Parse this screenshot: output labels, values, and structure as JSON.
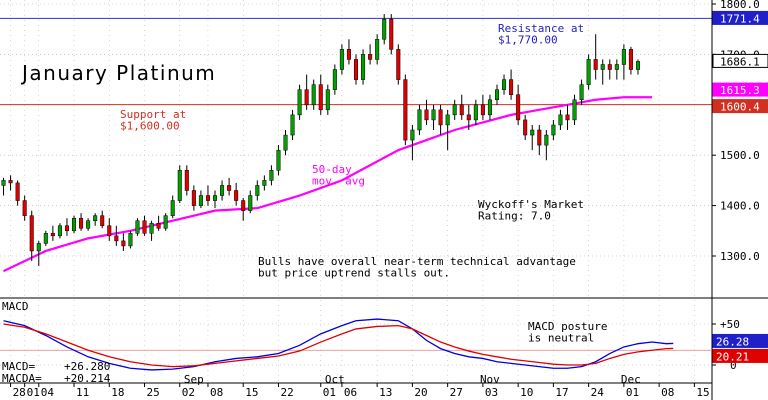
{
  "chart_data": [
    {
      "type": "candlestick",
      "title": "January Platinum",
      "ylim": [
        1200,
        1800
      ],
      "y_ticks": [
        1300,
        1400,
        1500,
        1600,
        1700,
        1800
      ],
      "y_tick_labels": [
        "1300.0",
        "1400.0",
        "1500.0",
        "1600.0",
        "1700.0",
        "1800.0"
      ],
      "x_tick_labels": [
        {
          "label": "28",
          "i": 1
        },
        {
          "label": "01",
          "i": 3
        },
        {
          "label": "04",
          "i": 5
        },
        {
          "label": "11",
          "i": 10
        },
        {
          "label": "18",
          "i": 15
        },
        {
          "label": "25",
          "i": 20
        },
        {
          "label": "02",
          "i": 25
        },
        {
          "label": "08",
          "i": 29
        },
        {
          "label": "15",
          "i": 34
        },
        {
          "label": "22",
          "i": 39
        },
        {
          "label": "01",
          "i": 45
        },
        {
          "label": "06",
          "i": 48
        },
        {
          "label": "13",
          "i": 53
        },
        {
          "label": "20",
          "i": 58
        },
        {
          "label": "27",
          "i": 63
        },
        {
          "label": "03",
          "i": 68
        },
        {
          "label": "10",
          "i": 73
        },
        {
          "label": "17",
          "i": 78
        },
        {
          "label": "24",
          "i": 83
        },
        {
          "label": "01",
          "i": 88
        },
        {
          "label": "08",
          "i": 93
        },
        {
          "label": "15",
          "i": 98
        }
      ],
      "month_labels": [
        {
          "label": "Sep",
          "i": 27
        },
        {
          "label": "Oct",
          "i": 47
        },
        {
          "label": "Nov",
          "i": 69
        },
        {
          "label": "Dec",
          "i": 89
        }
      ],
      "n_slots": 101,
      "candles": [
        [
          1440,
          1455,
          1420,
          1450
        ],
        [
          1450,
          1460,
          1430,
          1445
        ],
        [
          1445,
          1450,
          1400,
          1410
        ],
        [
          1410,
          1420,
          1370,
          1380
        ],
        [
          1380,
          1390,
          1290,
          1310
        ],
        [
          1310,
          1330,
          1280,
          1325
        ],
        [
          1325,
          1350,
          1320,
          1345
        ],
        [
          1345,
          1360,
          1330,
          1340
        ],
        [
          1340,
          1365,
          1335,
          1360
        ],
        [
          1360,
          1375,
          1340,
          1350
        ],
        [
          1350,
          1380,
          1345,
          1375
        ],
        [
          1375,
          1385,
          1350,
          1355
        ],
        [
          1355,
          1375,
          1350,
          1370
        ],
        [
          1370,
          1385,
          1360,
          1380
        ],
        [
          1380,
          1390,
          1355,
          1360
        ],
        [
          1360,
          1375,
          1330,
          1340
        ],
        [
          1340,
          1360,
          1320,
          1330
        ],
        [
          1330,
          1345,
          1310,
          1320
        ],
        [
          1320,
          1350,
          1315,
          1345
        ],
        [
          1345,
          1375,
          1340,
          1370
        ],
        [
          1370,
          1380,
          1340,
          1345
        ],
        [
          1345,
          1370,
          1330,
          1365
        ],
        [
          1365,
          1380,
          1350,
          1355
        ],
        [
          1355,
          1385,
          1350,
          1380
        ],
        [
          1380,
          1420,
          1375,
          1410
        ],
        [
          1410,
          1480,
          1405,
          1470
        ],
        [
          1470,
          1480,
          1420,
          1430
        ],
        [
          1430,
          1440,
          1390,
          1400
        ],
        [
          1400,
          1430,
          1395,
          1420
        ],
        [
          1420,
          1440,
          1400,
          1410
        ],
        [
          1410,
          1430,
          1395,
          1420
        ],
        [
          1420,
          1450,
          1410,
          1440
        ],
        [
          1440,
          1455,
          1420,
          1430
        ],
        [
          1430,
          1445,
          1400,
          1410
        ],
        [
          1410,
          1415,
          1370,
          1390
        ],
        [
          1390,
          1430,
          1385,
          1420
        ],
        [
          1420,
          1450,
          1410,
          1440
        ],
        [
          1440,
          1460,
          1430,
          1450
        ],
        [
          1450,
          1480,
          1440,
          1470
        ],
        [
          1470,
          1520,
          1460,
          1510
        ],
        [
          1510,
          1550,
          1500,
          1540
        ],
        [
          1540,
          1590,
          1530,
          1580
        ],
        [
          1580,
          1640,
          1570,
          1630
        ],
        [
          1630,
          1660,
          1590,
          1600
        ],
        [
          1600,
          1650,
          1590,
          1640
        ],
        [
          1640,
          1660,
          1580,
          1590
        ],
        [
          1590,
          1640,
          1580,
          1630
        ],
        [
          1630,
          1680,
          1620,
          1670
        ],
        [
          1670,
          1720,
          1660,
          1710
        ],
        [
          1710,
          1730,
          1680,
          1690
        ],
        [
          1690,
          1700,
          1640,
          1650
        ],
        [
          1650,
          1710,
          1640,
          1700
        ],
        [
          1700,
          1720,
          1680,
          1690
        ],
        [
          1690,
          1740,
          1680,
          1730
        ],
        [
          1730,
          1780,
          1720,
          1770
        ],
        [
          1770,
          1780,
          1700,
          1710
        ],
        [
          1710,
          1720,
          1640,
          1650
        ],
        [
          1650,
          1660,
          1520,
          1530
        ],
        [
          1530,
          1560,
          1490,
          1550
        ],
        [
          1550,
          1600,
          1540,
          1590
        ],
        [
          1590,
          1610,
          1560,
          1570
        ],
        [
          1570,
          1600,
          1550,
          1590
        ],
        [
          1590,
          1600,
          1540,
          1560
        ],
        [
          1560,
          1590,
          1510,
          1580
        ],
        [
          1580,
          1610,
          1570,
          1600
        ],
        [
          1600,
          1620,
          1570,
          1580
        ],
        [
          1580,
          1600,
          1550,
          1570
        ],
        [
          1570,
          1610,
          1560,
          1600
        ],
        [
          1600,
          1620,
          1570,
          1580
        ],
        [
          1580,
          1620,
          1570,
          1610
        ],
        [
          1610,
          1640,
          1600,
          1630
        ],
        [
          1630,
          1660,
          1620,
          1650
        ],
        [
          1650,
          1670,
          1610,
          1620
        ],
        [
          1620,
          1640,
          1560,
          1570
        ],
        [
          1570,
          1580,
          1530,
          1540
        ],
        [
          1540,
          1560,
          1510,
          1550
        ],
        [
          1550,
          1560,
          1500,
          1520
        ],
        [
          1520,
          1550,
          1490,
          1540
        ],
        [
          1540,
          1570,
          1530,
          1560
        ],
        [
          1560,
          1590,
          1550,
          1580
        ],
        [
          1580,
          1600,
          1550,
          1570
        ],
        [
          1570,
          1620,
          1560,
          1610
        ],
        [
          1610,
          1650,
          1600,
          1640
        ],
        [
          1640,
          1700,
          1630,
          1690
        ],
        [
          1690,
          1740,
          1650,
          1670
        ],
        [
          1670,
          1690,
          1640,
          1680
        ],
        [
          1680,
          1690,
          1650,
          1670
        ],
        [
          1670,
          1690,
          1650,
          1680
        ],
        [
          1680,
          1720,
          1650,
          1710
        ],
        [
          1710,
          1715,
          1660,
          1670
        ],
        [
          1670,
          1690,
          1660,
          1686
        ]
      ],
      "candle_x_offset": 0,
      "ma50": {
        "label": "50-day\nmov. avg",
        "values_at": [
          [
            0,
            1270
          ],
          [
            6,
            1310
          ],
          [
            12,
            1335
          ],
          [
            18,
            1350
          ],
          [
            24,
            1370
          ],
          [
            30,
            1390
          ],
          [
            36,
            1395
          ],
          [
            42,
            1420
          ],
          [
            48,
            1450
          ],
          [
            52,
            1480
          ],
          [
            56,
            1510
          ],
          [
            60,
            1530
          ],
          [
            64,
            1550
          ],
          [
            68,
            1565
          ],
          [
            72,
            1580
          ],
          [
            76,
            1590
          ],
          [
            80,
            1600
          ],
          [
            84,
            1610
          ],
          [
            88,
            1615
          ],
          [
            92,
            1615
          ],
          [
            91,
            1615.3
          ]
        ]
      },
      "reference_lines": [
        {
          "name": "resistance",
          "value": 1771.4,
          "label": "1771.4",
          "color": "#3030c8"
        },
        {
          "name": "support",
          "value": 1600.4,
          "label": "1600.4",
          "color": "#d03020"
        }
      ],
      "price_badges": [
        {
          "name": "last-price",
          "value": 1686.1,
          "label": "1686.1",
          "bg": "#ffffff",
          "fg": "#000000",
          "border": "#000000"
        },
        {
          "name": "ma-value",
          "value": 1615.3,
          "label": "1615.3",
          "bg": "#ff00ff",
          "fg": "#ffffff",
          "border": "#ff00ff"
        },
        {
          "name": "support-value",
          "value": 1600.4,
          "label": "1600.4",
          "bg": "#d03020",
          "fg": "#ffffff",
          "border": "#d03020"
        },
        {
          "name": "resistance-value",
          "value": 1771.4,
          "label": "1771.4",
          "bg": "#2020c8",
          "fg": "#ffffff",
          "border": "#2020c8"
        }
      ],
      "annotations": {
        "resistance": "Resistance at\n$1,770.00",
        "support": "Support at\n$1,600.00",
        "ma": "50-day\nmov. avg",
        "rating": "Wyckoff's Market\nRating: 7.0",
        "comment": "Bulls have overall near-term technical advantage\nbut price uptrend stalls out."
      },
      "colors": {
        "up": "#00a000",
        "down": "#e00000",
        "ma": "#ff00ff",
        "grid": "#b0b0b0"
      }
    },
    {
      "type": "line",
      "title": "MACD",
      "ylim": [
        -10,
        70
      ],
      "y_tick_labels": [
        {
          "label": "+50",
          "value": 50
        },
        {
          "label": "0",
          "value": 0
        }
      ],
      "legend": [
        {
          "name": "MACD",
          "label": "MACD=",
          "value": "+26.280",
          "color": "#0000e0"
        },
        {
          "name": "MACDA",
          "label": "MACDA=",
          "value": "+20.214",
          "color": "#e00000"
        }
      ],
      "badges": [
        {
          "label": "26.28",
          "value": 26.28,
          "bg": "#2020c8"
        },
        {
          "label": "20.21",
          "value": 20.21,
          "bg": "#e00000"
        }
      ],
      "annotation": "MACD posture\nis neutral",
      "series": [
        {
          "name": "MACD",
          "color": "#0000e0",
          "points": [
            [
              0,
              54
            ],
            [
              3,
              48
            ],
            [
              6,
              36
            ],
            [
              9,
              22
            ],
            [
              12,
              10
            ],
            [
              15,
              2
            ],
            [
              18,
              -4
            ],
            [
              21,
              -6
            ],
            [
              24,
              -5
            ],
            [
              27,
              -2
            ],
            [
              30,
              4
            ],
            [
              33,
              8
            ],
            [
              36,
              10
            ],
            [
              39,
              14
            ],
            [
              42,
              24
            ],
            [
              45,
              38
            ],
            [
              48,
              48
            ],
            [
              50,
              54
            ],
            [
              53,
              56
            ],
            [
              56,
              54
            ],
            [
              58,
              44
            ],
            [
              60,
              30
            ],
            [
              62,
              20
            ],
            [
              64,
              14
            ],
            [
              66,
              10
            ],
            [
              68,
              8
            ],
            [
              70,
              4
            ],
            [
              72,
              2
            ],
            [
              74,
              0
            ],
            [
              76,
              -2
            ],
            [
              78,
              -4
            ],
            [
              80,
              -4
            ],
            [
              82,
              -2
            ],
            [
              84,
              4
            ],
            [
              86,
              14
            ],
            [
              88,
              22
            ],
            [
              90,
              26
            ],
            [
              92,
              28
            ],
            [
              94,
              26
            ],
            [
              95,
              26.28
            ]
          ]
        },
        {
          "name": "MACDA",
          "color": "#e00000",
          "points": [
            [
              0,
              50
            ],
            [
              3,
              46
            ],
            [
              6,
              38
            ],
            [
              9,
              28
            ],
            [
              12,
              18
            ],
            [
              15,
              10
            ],
            [
              18,
              4
            ],
            [
              21,
              0
            ],
            [
              24,
              -2
            ],
            [
              27,
              -1
            ],
            [
              30,
              2
            ],
            [
              33,
              5
            ],
            [
              36,
              8
            ],
            [
              39,
              11
            ],
            [
              42,
              17
            ],
            [
              45,
              28
            ],
            [
              48,
              38
            ],
            [
              50,
              44
            ],
            [
              53,
              47
            ],
            [
              56,
              48
            ],
            [
              58,
              44
            ],
            [
              60,
              36
            ],
            [
              62,
              28
            ],
            [
              64,
              22
            ],
            [
              66,
              17
            ],
            [
              68,
              13
            ],
            [
              70,
              10
            ],
            [
              72,
              7
            ],
            [
              74,
              5
            ],
            [
              76,
              3
            ],
            [
              78,
              1
            ],
            [
              80,
              0
            ],
            [
              82,
              0
            ],
            [
              84,
              2
            ],
            [
              86,
              8
            ],
            [
              88,
              13
            ],
            [
              90,
              16
            ],
            [
              92,
              18
            ],
            [
              94,
              20
            ],
            [
              95,
              20.214
            ]
          ]
        }
      ],
      "zero_line_value": 18
    }
  ]
}
